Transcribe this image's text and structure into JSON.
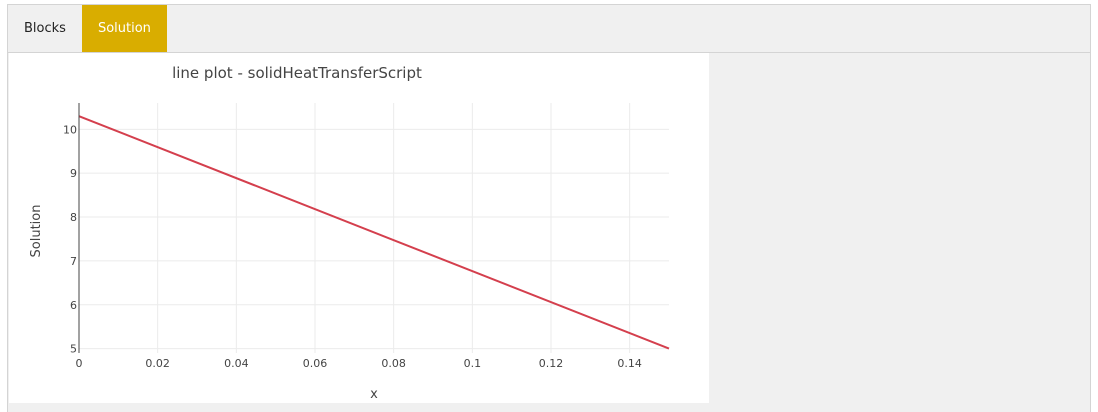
{
  "tabs": [
    {
      "label": "Blocks",
      "active": false
    },
    {
      "label": "Solution",
      "active": true
    }
  ],
  "colors": {
    "accent": "#d9ad00",
    "line": "#d43f4d"
  },
  "chart_data": {
    "type": "line",
    "title": "line plot - solidHeatTransferScript",
    "xlabel": "x",
    "ylabel": "Solution",
    "xlim": [
      0,
      0.15
    ],
    "ylim": [
      4.9,
      10.6
    ],
    "xticks": [
      0,
      0.02,
      0.04,
      0.06,
      0.08,
      0.1,
      0.12,
      0.14
    ],
    "xtick_labels": [
      "0",
      "0.02",
      "0.04",
      "0.06",
      "0.08",
      "0.1",
      "0.12",
      "0.14"
    ],
    "yticks": [
      5,
      6,
      7,
      8,
      9,
      10
    ],
    "ytick_labels": [
      "5",
      "6",
      "7",
      "8",
      "9",
      "10"
    ],
    "grid": true,
    "series": [
      {
        "x": [
          0,
          0.15
        ],
        "y": [
          10.3,
          5.0
        ]
      }
    ]
  }
}
